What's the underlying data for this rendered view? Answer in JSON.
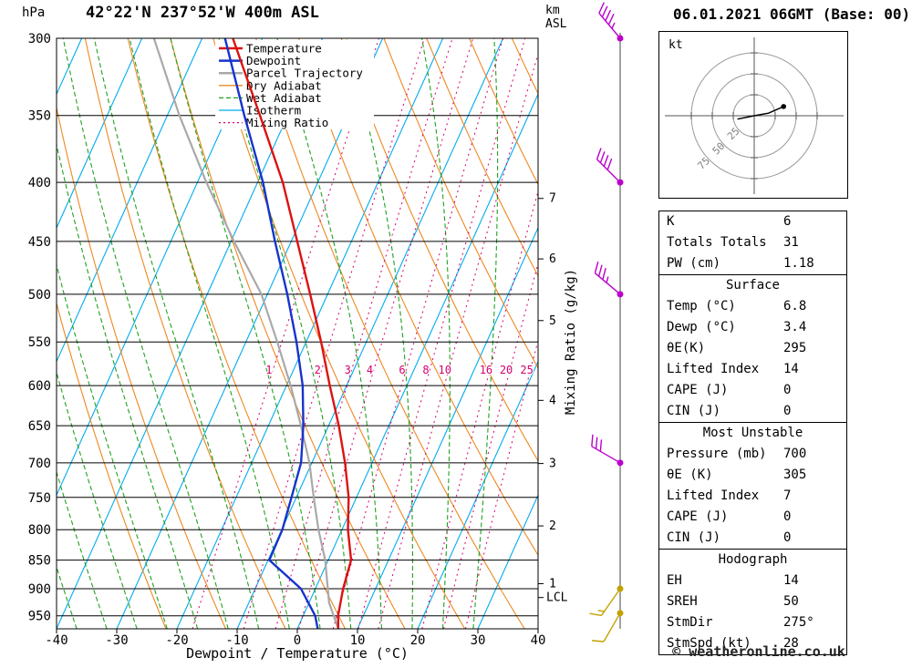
{
  "header": {
    "pressure_unit": "hPa",
    "title": "42°22'N 237°52'W 400m ASL",
    "km_label": "km",
    "asl_label": "ASL",
    "datetime": "06.01.2021 06GMT (Base: 00)"
  },
  "axes": {
    "pressure_ticks": [
      300,
      350,
      400,
      450,
      500,
      550,
      600,
      650,
      700,
      750,
      800,
      850,
      900,
      950
    ],
    "temp_ticks": [
      -40,
      -30,
      -20,
      -10,
      0,
      10,
      20,
      30,
      40
    ],
    "xlabel": "Dewpoint / Temperature (°C)",
    "mixing_axis_label": "Mixing Ratio (g/kg)",
    "km_ticks": [
      {
        "km": 7,
        "p": 413
      },
      {
        "km": 6,
        "p": 466
      },
      {
        "km": 5,
        "p": 527
      },
      {
        "km": 4,
        "p": 618
      },
      {
        "km": 3,
        "p": 701
      },
      {
        "km": 2,
        "p": 794
      },
      {
        "km": 1,
        "p": 891
      }
    ],
    "lcl": {
      "label": "LCL",
      "p": 916
    }
  },
  "legend": [
    {
      "label": "Temperature",
      "key": "temperature"
    },
    {
      "label": "Dewpoint",
      "key": "dewpoint"
    },
    {
      "label": "Parcel Trajectory",
      "key": "parcel"
    },
    {
      "label": "Dry Adiabat",
      "key": "dry_adiabat"
    },
    {
      "label": "Wet Adiabat",
      "key": "wet_adiabat"
    },
    {
      "label": "Isotherm",
      "key": "isotherm"
    },
    {
      "label": "Mixing Ratio",
      "key": "mixing_ratio"
    }
  ],
  "colors": {
    "temperature": "#dd1111",
    "dewpoint": "#1733cc",
    "parcel": "#a9a9a9",
    "dry_adiabat": "#ee8822",
    "wet_adiabat": "#1fa01f",
    "isotherm": "#00acee",
    "mixing_ratio": "#d6006e",
    "barb_upper": "#bb00cc",
    "barb_lower": "#c2a200",
    "grid": "#000000"
  },
  "chart_data": {
    "type": "skewt-log-p",
    "pressure_range": [
      975,
      300
    ],
    "temp_range": [
      -40,
      40
    ],
    "skew_ratio": 0.45,
    "mixing_ratio_lines": [
      1,
      2,
      3,
      4,
      6,
      8,
      10,
      16,
      20,
      25
    ],
    "profiles": {
      "temperature": [
        [
          975,
          6.8
        ],
        [
          950,
          5.8
        ],
        [
          900,
          4.6
        ],
        [
          850,
          3.8
        ],
        [
          800,
          1.0
        ],
        [
          750,
          -1.3
        ],
        [
          700,
          -4.5
        ],
        [
          650,
          -8.3
        ],
        [
          600,
          -12.8
        ],
        [
          550,
          -17.5
        ],
        [
          500,
          -22.9
        ],
        [
          450,
          -29.0
        ],
        [
          400,
          -35.8
        ],
        [
          350,
          -44.6
        ],
        [
          300,
          -54.9
        ]
      ],
      "dewpoint": [
        [
          975,
          3.4
        ],
        [
          950,
          2.0
        ],
        [
          900,
          -2.4
        ],
        [
          850,
          -9.8
        ],
        [
          800,
          -9.9
        ],
        [
          750,
          -10.8
        ],
        [
          700,
          -11.8
        ],
        [
          650,
          -14.2
        ],
        [
          600,
          -17.3
        ],
        [
          550,
          -21.6
        ],
        [
          500,
          -26.7
        ],
        [
          450,
          -32.7
        ],
        [
          400,
          -39.1
        ],
        [
          350,
          -47.2
        ],
        [
          300,
          -56.2
        ]
      ],
      "parcel": [
        [
          975,
          6.8
        ],
        [
          925,
          3.3
        ],
        [
          850,
          -0.5
        ],
        [
          800,
          -3.9
        ],
        [
          750,
          -7.1
        ],
        [
          700,
          -10.4
        ],
        [
          650,
          -14.6
        ],
        [
          600,
          -19.3
        ],
        [
          550,
          -24.8
        ],
        [
          500,
          -31.0
        ],
        [
          450,
          -39.5
        ],
        [
          400,
          -48.5
        ],
        [
          350,
          -58.0
        ],
        [
          300,
          -68.0
        ]
      ]
    },
    "wind_barbs": [
      {
        "p": 300,
        "dir": 320,
        "kt": 45,
        "color": "#bb00cc"
      },
      {
        "p": 400,
        "dir": 315,
        "kt": 40,
        "color": "#bb00cc"
      },
      {
        "p": 500,
        "dir": 310,
        "kt": 35,
        "color": "#bb00cc"
      },
      {
        "p": 700,
        "dir": 300,
        "kt": 30,
        "color": "#bb00cc"
      },
      {
        "p": 900,
        "dir": 215,
        "kt": 15,
        "color": "#c2a200"
      },
      {
        "p": 945,
        "dir": 210,
        "kt": 10,
        "color": "#c2a200"
      }
    ]
  },
  "hodograph": {
    "unit": "kt",
    "rings": [
      25,
      50,
      75
    ],
    "trace_kt": [
      [
        -20,
        4
      ],
      [
        0,
        0
      ],
      [
        17,
        -3
      ],
      [
        35,
        -11
      ]
    ]
  },
  "tables": {
    "summary": {
      "rows": [
        {
          "label": "K",
          "value": "6"
        },
        {
          "label": "Totals Totals",
          "value": "31"
        },
        {
          "label": "PW (cm)",
          "value": "1.18"
        }
      ]
    },
    "surface": {
      "title": "Surface",
      "rows": [
        {
          "label": "Temp (°C)",
          "value": "6.8"
        },
        {
          "label": "Dewp (°C)",
          "value": "3.4"
        },
        {
          "label": "θE(K)",
          "value": "295"
        },
        {
          "label": "Lifted Index",
          "value": "14"
        },
        {
          "label": "CAPE (J)",
          "value": "0"
        },
        {
          "label": "CIN (J)",
          "value": "0"
        }
      ]
    },
    "most_unstable": {
      "title": "Most Unstable",
      "rows": [
        {
          "label": "Pressure (mb)",
          "value": "700"
        },
        {
          "label": "θE (K)",
          "value": "305"
        },
        {
          "label": "Lifted Index",
          "value": "7"
        },
        {
          "label": "CAPE (J)",
          "value": "0"
        },
        {
          "label": "CIN (J)",
          "value": "0"
        }
      ]
    },
    "hodograph": {
      "title": "Hodograph",
      "rows": [
        {
          "label": "EH",
          "value": "14"
        },
        {
          "label": "SREH",
          "value": "50"
        },
        {
          "label": "StmDir",
          "value": "275°"
        },
        {
          "label": "StmSpd (kt)",
          "value": "28"
        }
      ]
    }
  },
  "footer": {
    "copyright": "© weatheronline.co.uk"
  }
}
